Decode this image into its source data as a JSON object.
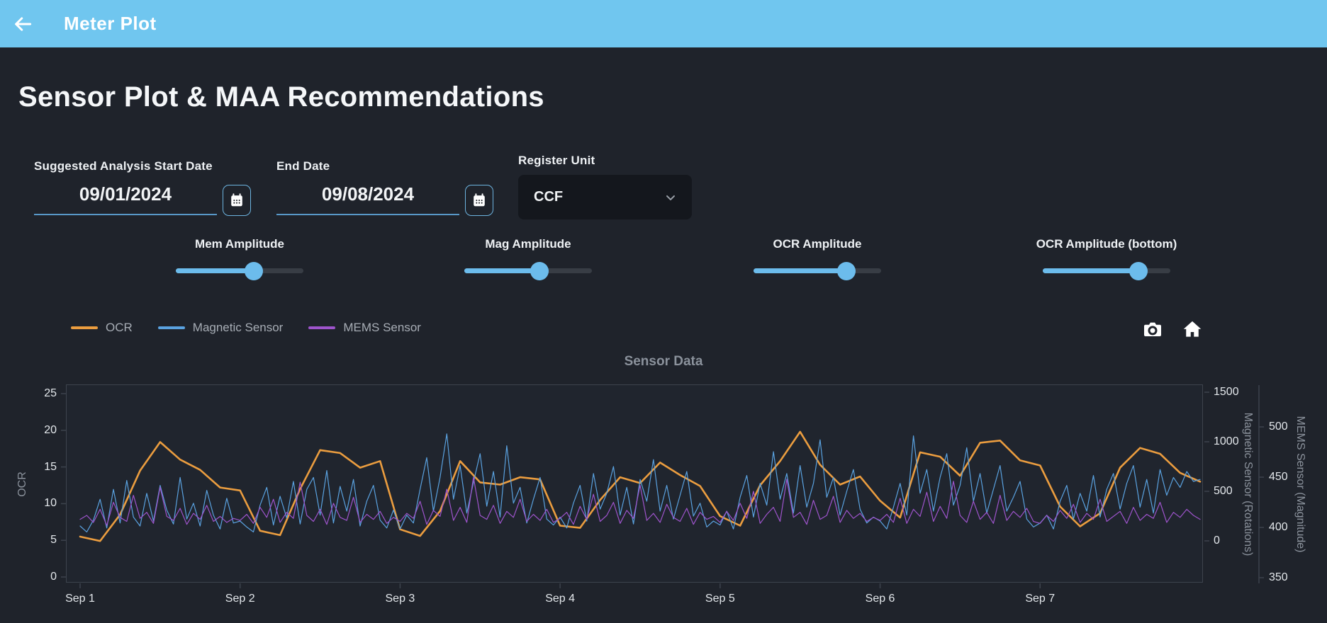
{
  "header": {
    "title": "Meter Plot",
    "back_icon": "arrow-left-icon"
  },
  "page": {
    "heading": "Sensor Plot & MAA Recommendations"
  },
  "controls": {
    "start_date": {
      "label": "Suggested Analysis Start Date",
      "value": "09/01/2024",
      "icon": "calendar-icon"
    },
    "end_date": {
      "label": "End Date",
      "value": "09/08/2024",
      "icon": "calendar-icon"
    },
    "register_unit": {
      "label": "Register Unit",
      "value": "CCF",
      "icon": "chevron-down-icon"
    }
  },
  "sliders": [
    {
      "label": "Mem Amplitude",
      "percent": 61
    },
    {
      "label": "Mag Amplitude",
      "percent": 59
    },
    {
      "label": "OCR Amplitude",
      "percent": 73
    },
    {
      "label": "OCR Amplitude (bottom)",
      "percent": 75
    }
  ],
  "toolbar": {
    "icons": [
      "camera-icon",
      "home-icon"
    ]
  },
  "colors": {
    "header": "#70c6ef",
    "accent": "#6cbcec",
    "ocr_line": "#eb9d3f",
    "magnetic_line": "#5aa2e0",
    "mems_line": "#9e54cc"
  },
  "chart_data": {
    "type": "line",
    "title": "Sensor Data",
    "grid": false,
    "legend_position": "top-left",
    "x": {
      "tick_labels": [
        "Sep 1",
        "Sep 2",
        "Sep 3",
        "Sep 4",
        "Sep 5",
        "Sep 6",
        "Sep 7"
      ],
      "range_days": [
        0,
        7
      ]
    },
    "axes": {
      "ocr": {
        "title": "OCR",
        "side": "left",
        "ticks": [
          0,
          5,
          10,
          15,
          20,
          25
        ]
      },
      "mag": {
        "title": "Magnetic Sensor (Rotations)",
        "side": "right",
        "ticks": [
          0,
          500,
          1000,
          1500
        ]
      },
      "mems": {
        "title": "MEMS Sensor (Magnitude)",
        "side": "right-outer",
        "ticks": [
          350,
          400,
          450,
          500
        ]
      }
    },
    "series": [
      {
        "name": "OCR",
        "axis": "ocr",
        "color": "#eb9d3f",
        "width": 2.6,
        "step_days": 0.125,
        "values": [
          5.5,
          4.9,
          8.5,
          14.5,
          18.4,
          16.0,
          14.6,
          12.2,
          11.8,
          6.3,
          5.7,
          12.0,
          17.3,
          16.9,
          14.9,
          15.8,
          6.5,
          5.6,
          9.0,
          15.8,
          12.9,
          12.6,
          13.6,
          13.3,
          7.0,
          6.7,
          10.5,
          13.6,
          12.8,
          15.6,
          13.9,
          12.4,
          8.3,
          7.0,
          12.5,
          15.8,
          19.8,
          15.3,
          12.6,
          13.7,
          10.4,
          8.1,
          17.0,
          16.4,
          13.8,
          18.3,
          18.6,
          15.9,
          15.2,
          9.6,
          6.9,
          8.7,
          14.9,
          17.6,
          16.8,
          14.2,
          13.0
        ]
      },
      {
        "name": "Magnetic Sensor",
        "axis": "mag",
        "color": "#5aa2e0",
        "width": 1.2,
        "step_days": 0.0416667,
        "values": [
          150,
          90,
          210,
          420,
          130,
          520,
          180,
          610,
          240,
          150,
          480,
          200,
          560,
          310,
          170,
          640,
          220,
          380,
          150,
          510,
          260,
          120,
          430,
          180,
          200,
          140,
          90,
          360,
          540,
          160,
          450,
          230,
          600,
          170,
          520,
          640,
          260,
          710,
          180,
          550,
          300,
          620,
          150,
          400,
          560,
          210,
          130,
          310,
          120,
          260,
          180,
          520,
          840,
          300,
          640,
          1080,
          420,
          760,
          280,
          590,
          880,
          350,
          700,
          240,
          960,
          380,
          540,
          180,
          420,
          640,
          220,
          160,
          240,
          130,
          380,
          560,
          200,
          680,
          320,
          480,
          750,
          260,
          540,
          170,
          620,
          400,
          820,
          300,
          560,
          220,
          460,
          700,
          250,
          380,
          140,
          200,
          160,
          300,
          120,
          440,
          660,
          240,
          580,
          360,
          900,
          420,
          680,
          280,
          760,
          340,
          580,
          1020,
          440,
          640,
          260,
          500,
          720,
          320,
          180,
          240,
          200,
          120,
          340,
          580,
          260,
          1060,
          480,
          720,
          300,
          640,
          880,
          360,
          560,
          940,
          400,
          680,
          280,
          520,
          760,
          300,
          440,
          600,
          220,
          140,
          180,
          260,
          120,
          400,
          560,
          220,
          480,
          300,
          660,
          240,
          520,
          680,
          320,
          580,
          760,
          340,
          620,
          280,
          720,
          460,
          640,
          540,
          700,
          600,
          620
        ]
      },
      {
        "name": "MEMS Sensor",
        "axis": "mems",
        "color": "#9e54cc",
        "width": 1.2,
        "step_days": 0.0416667,
        "values": [
          408,
          412,
          405,
          418,
          402,
          425,
          410,
          406,
          432,
          409,
          415,
          404,
          440,
          411,
          407,
          419,
          403,
          414,
          408,
          422,
          406,
          411,
          405,
          409,
          407,
          413,
          404,
          420,
          410,
          428,
          405,
          415,
          409,
          445,
          412,
          406,
          418,
          403,
          424,
          410,
          407,
          430,
          405,
          413,
          408,
          416,
          404,
          410,
          406,
          414,
          409,
          426,
          403,
          417,
          411,
          438,
          407,
          420,
          405,
          450,
          412,
          408,
          422,
          404,
          416,
          410,
          428,
          406,
          413,
          407,
          418,
          405,
          409,
          415,
          403,
          421,
          408,
          433,
          406,
          412,
          425,
          404,
          417,
          409,
          442,
          407,
          414,
          405,
          423,
          410,
          406,
          419,
          403,
          415,
          408,
          411,
          405,
          416,
          407,
          424,
          409,
          436,
          404,
          413,
          420,
          406,
          448,
          410,
          415,
          403,
          427,
          408,
          412,
          431,
          405,
          417,
          409,
          414,
          406,
          410,
          407,
          413,
          405,
          429,
          404,
          418,
          411,
          435,
          406,
          421,
          409,
          446,
          412,
          405,
          426,
          408,
          415,
          404,
          432,
          407,
          416,
          410,
          419,
          406,
          404,
          412,
          406,
          417,
          409,
          423,
          405,
          414,
          408,
          428,
          406,
          411,
          416,
          404,
          420,
          407,
          413,
          409,
          425,
          405,
          415,
          410,
          418,
          412,
          408
        ]
      }
    ]
  }
}
